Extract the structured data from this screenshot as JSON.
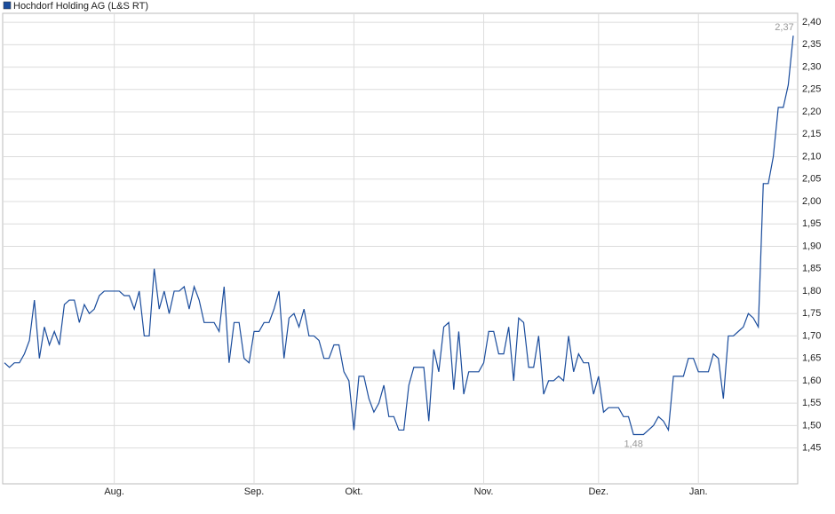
{
  "chart_data": {
    "type": "line",
    "categories": [
      null,
      null,
      null,
      null,
      null,
      null,
      null,
      null,
      null,
      null,
      null,
      null,
      null,
      null,
      null,
      null,
      null,
      null,
      null,
      null,
      null,
      null,
      "Aug.",
      null,
      null,
      null,
      null,
      null,
      null,
      null,
      null,
      null,
      null,
      null,
      null,
      null,
      null,
      null,
      null,
      null,
      null,
      null,
      null,
      null,
      null,
      null,
      null,
      null,
      null,
      null,
      "Sep.",
      null,
      null,
      null,
      null,
      null,
      null,
      null,
      null,
      null,
      null,
      null,
      null,
      null,
      null,
      null,
      null,
      null,
      null,
      null,
      "Okt.",
      null,
      null,
      null,
      null,
      null,
      null,
      null,
      null,
      null,
      null,
      null,
      null,
      null,
      null,
      null,
      null,
      null,
      null,
      null,
      null,
      null,
      null,
      null,
      null,
      null,
      "Nov.",
      null,
      null,
      null,
      null,
      null,
      null,
      null,
      null,
      null,
      null,
      null,
      null,
      null,
      null,
      null,
      null,
      null,
      null,
      null,
      null,
      null,
      null,
      "Dez.",
      null,
      null,
      null,
      null,
      null,
      null,
      null,
      null,
      null,
      null,
      null,
      null,
      null,
      null,
      null,
      null,
      null,
      null,
      null,
      "Jan.",
      null,
      null,
      null,
      null,
      null,
      null,
      null,
      null,
      null,
      null,
      null,
      null,
      null,
      null,
      null,
      null,
      null,
      null,
      null
    ],
    "series": [
      {
        "name": "Hochdorf Holding AG (L&S RT)",
        "color": "#1a4c9c",
        "values": [
          1.64,
          1.63,
          1.64,
          1.64,
          1.66,
          1.69,
          1.78,
          1.65,
          1.72,
          1.68,
          1.71,
          1.68,
          1.77,
          1.78,
          1.78,
          1.73,
          1.77,
          1.75,
          1.76,
          1.79,
          1.8,
          1.8,
          1.8,
          1.8,
          1.79,
          1.79,
          1.76,
          1.8,
          1.7,
          1.7,
          1.85,
          1.76,
          1.8,
          1.75,
          1.8,
          1.8,
          1.81,
          1.76,
          1.81,
          1.78,
          1.73,
          1.73,
          1.73,
          1.71,
          1.81,
          1.64,
          1.73,
          1.73,
          1.65,
          1.64,
          1.71,
          1.71,
          1.73,
          1.73,
          1.76,
          1.8,
          1.65,
          1.74,
          1.75,
          1.72,
          1.76,
          1.7,
          1.7,
          1.69,
          1.65,
          1.65,
          1.68,
          1.68,
          1.62,
          1.6,
          1.49,
          1.61,
          1.61,
          1.56,
          1.53,
          1.55,
          1.59,
          1.52,
          1.52,
          1.49,
          1.49,
          1.59,
          1.63,
          1.63,
          1.63,
          1.51,
          1.67,
          1.62,
          1.72,
          1.73,
          1.58,
          1.71,
          1.57,
          1.62,
          1.62,
          1.62,
          1.64,
          1.71,
          1.71,
          1.66,
          1.66,
          1.72,
          1.6,
          1.74,
          1.73,
          1.63,
          1.63,
          1.7,
          1.57,
          1.6,
          1.6,
          1.61,
          1.6,
          1.7,
          1.62,
          1.66,
          1.64,
          1.64,
          1.57,
          1.61,
          1.53,
          1.54,
          1.54,
          1.54,
          1.52,
          1.52,
          1.48,
          1.48,
          1.48,
          1.49,
          1.5,
          1.52,
          1.51,
          1.49,
          1.61,
          1.61,
          1.61,
          1.65,
          1.65,
          1.62,
          1.62,
          1.62,
          1.66,
          1.65,
          1.56,
          1.7,
          1.7,
          1.71,
          1.72,
          1.75,
          1.74,
          1.72,
          2.04,
          2.04,
          2.1,
          2.21,
          2.21,
          2.26,
          2.37
        ],
        "value_labels": [
          null,
          null,
          null,
          null,
          null,
          null,
          null,
          null,
          null,
          null,
          null,
          null,
          null,
          null,
          null,
          null,
          null,
          null,
          null,
          null,
          null,
          null,
          null,
          null,
          null,
          null,
          null,
          null,
          null,
          null,
          null,
          null,
          null,
          null,
          null,
          null,
          null,
          null,
          null,
          null,
          null,
          null,
          null,
          null,
          null,
          null,
          null,
          null,
          null,
          null,
          null,
          null,
          null,
          null,
          null,
          null,
          null,
          null,
          null,
          null,
          null,
          null,
          null,
          null,
          null,
          null,
          null,
          null,
          null,
          null,
          null,
          null,
          null,
          null,
          null,
          null,
          null,
          null,
          null,
          null,
          null,
          null,
          null,
          null,
          null,
          null,
          null,
          null,
          null,
          null,
          null,
          null,
          null,
          null,
          null,
          null,
          null,
          null,
          null,
          null,
          null,
          null,
          null,
          null,
          null,
          null,
          null,
          null,
          null,
          null,
          null,
          null,
          null,
          null,
          null,
          null,
          null,
          null,
          null,
          null,
          null,
          null,
          null,
          null,
          null,
          null,
          "1,48",
          null,
          null,
          null,
          null,
          null,
          null,
          null,
          null,
          null,
          null,
          null,
          null,
          null,
          null,
          null,
          null,
          null,
          null,
          null,
          null,
          null,
          null,
          null,
          null,
          null,
          null,
          null,
          null,
          null,
          null,
          null,
          "2,37"
        ]
      }
    ],
    "ylim": [
      1.37,
      2.42
    ],
    "yticks": [
      {
        "value": 1.45,
        "label": "1,45"
      },
      {
        "value": 1.5,
        "label": "1,50"
      },
      {
        "value": 1.55,
        "label": "1,55"
      },
      {
        "value": 1.6,
        "label": "1,60"
      },
      {
        "value": 1.65,
        "label": "1,65"
      },
      {
        "value": 1.7,
        "label": "1,70"
      },
      {
        "value": 1.75,
        "label": "1,75"
      },
      {
        "value": 1.8,
        "label": "1,80"
      },
      {
        "value": 1.85,
        "label": "1,85"
      },
      {
        "value": 1.9,
        "label": "1,90"
      },
      {
        "value": 1.95,
        "label": "1,95"
      },
      {
        "value": 2.0,
        "label": "2,00"
      },
      {
        "value": 2.05,
        "label": "2,05"
      },
      {
        "value": 2.1,
        "label": "2,10"
      },
      {
        "value": 2.15,
        "label": "2,15"
      },
      {
        "value": 2.2,
        "label": "2,20"
      },
      {
        "value": 2.25,
        "label": "2,25"
      },
      {
        "value": 2.3,
        "label": "2,30"
      },
      {
        "value": 2.35,
        "label": "2,35"
      },
      {
        "value": 2.4,
        "label": "2,40"
      }
    ],
    "grid": true
  }
}
